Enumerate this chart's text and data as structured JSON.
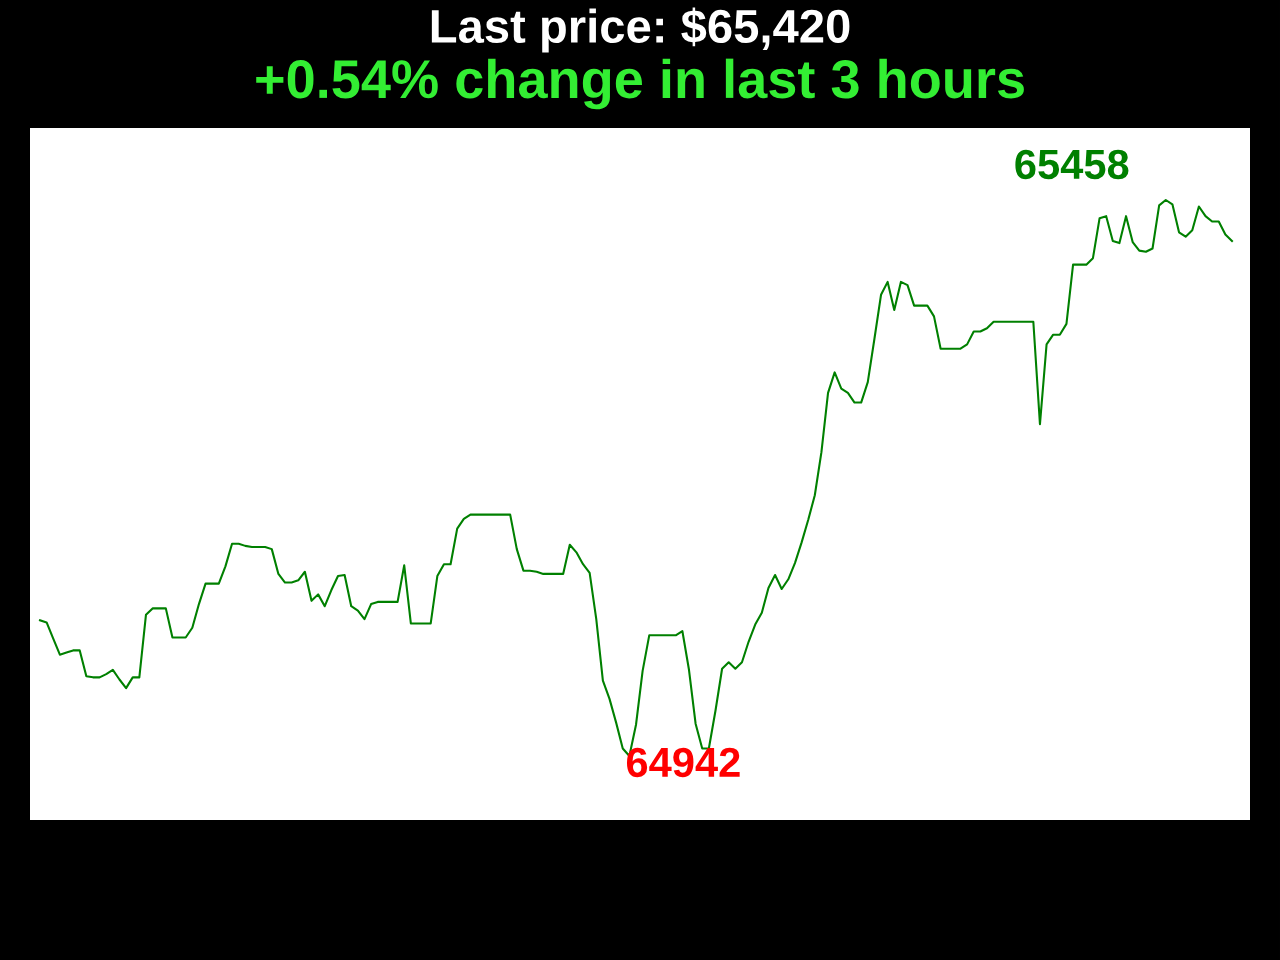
{
  "chart_data": {
    "type": "line",
    "title": "Last price: $65,420",
    "subtitle": "+0.54% change in last 3 hours",
    "categories": [
      null,
      null,
      null,
      null,
      null,
      null,
      null,
      null,
      null,
      null,
      null,
      null,
      null,
      null,
      null,
      null,
      null,
      null,
      null,
      null,
      null,
      null,
      null,
      null,
      null,
      null,
      null,
      null,
      null,
      null,
      null,
      null,
      null,
      null,
      null,
      null,
      null,
      null,
      null,
      null,
      null,
      null,
      null,
      null,
      null,
      null,
      null,
      null,
      null,
      null,
      null,
      null,
      null,
      null,
      null,
      null,
      null,
      null,
      null,
      null,
      null,
      null,
      null,
      null,
      null,
      null,
      null,
      null,
      null,
      null,
      null,
      null,
      null,
      null,
      null,
      null,
      null,
      null,
      null,
      null,
      null,
      null,
      null,
      null,
      null,
      null,
      null,
      null,
      null,
      null,
      null,
      null,
      null,
      null,
      null,
      null,
      null,
      null,
      null,
      null,
      null,
      null,
      null,
      null,
      null,
      null,
      null,
      null,
      null,
      null,
      null,
      null,
      null,
      null,
      null,
      null,
      null,
      null,
      null,
      null,
      null,
      null,
      null,
      null,
      null,
      null,
      null,
      null,
      null,
      null,
      null,
      null,
      null,
      null,
      null,
      null,
      null,
      null,
      null,
      null,
      null,
      null,
      null,
      null,
      null,
      null,
      null,
      null,
      null,
      null,
      null,
      null,
      null,
      null,
      null,
      null,
      null,
      null,
      null,
      null,
      null,
      null,
      null,
      null,
      null,
      null,
      null,
      null,
      null,
      null,
      null,
      null,
      null,
      null,
      null,
      null,
      null,
      null,
      null,
      null,
      null
    ],
    "series": [
      {
        "color": "#008000",
        "values": [
          65068,
          65066,
          65051,
          65036,
          65038,
          65040,
          65040,
          65016,
          65015,
          65015,
          65018,
          65022,
          65013,
          65005,
          65015,
          65015,
          65073,
          65079,
          65079,
          65079,
          65052,
          65052,
          65052,
          65061,
          65083,
          65102,
          65102,
          65102,
          65118,
          65139,
          65139,
          65137,
          65136,
          65136,
          65136,
          65134,
          65111,
          65103,
          65103,
          65105,
          65113,
          65086,
          65092,
          65081,
          65096,
          65109,
          65110,
          65081,
          65077,
          65069,
          65083,
          65085,
          65085,
          65085,
          65085,
          65119,
          65065,
          65065,
          65065,
          65065,
          65109,
          65120,
          65120,
          65153,
          65162,
          65166,
          65166,
          65166,
          65166,
          65166,
          65166,
          65166,
          65134,
          65114,
          65114,
          65113,
          65111,
          65111,
          65111,
          65111,
          65138,
          65131,
          65120,
          65112,
          65069,
          65012,
          64995,
          64973,
          64949,
          64942,
          64971,
          65021,
          65054,
          65054,
          65054,
          65054,
          65054,
          65058,
          65022,
          64972,
          64949,
          64949,
          64984,
          65023,
          65029,
          65023,
          65029,
          65048,
          65064,
          65075,
          65098,
          65110,
          65097,
          65106,
          65121,
          65140,
          65161,
          65184,
          65224,
          65279,
          65298,
          65283,
          65279,
          65270,
          65270,
          65289,
          65329,
          65370,
          65382,
          65356,
          65382,
          65379,
          65360,
          65360,
          65360,
          65350,
          65320,
          65320,
          65320,
          65320,
          65324,
          65336,
          65336,
          65339,
          65345,
          65345,
          65345,
          65345,
          65345,
          65345,
          65345,
          65250,
          65324,
          65333,
          65333,
          65343,
          65398,
          65398,
          65398,
          65404,
          65441,
          65443,
          65420,
          65418,
          65443,
          65419,
          65411,
          65410,
          65413,
          65453,
          65458,
          65454,
          65428,
          65424,
          65430,
          65452,
          65443,
          65438,
          65438,
          65426,
          65420
        ],
        "value_labels": [
          null,
          null,
          null,
          null,
          null,
          null,
          null,
          null,
          null,
          null,
          null,
          null,
          null,
          null,
          null,
          null,
          null,
          null,
          null,
          null,
          null,
          null,
          null,
          null,
          null,
          null,
          null,
          null,
          null,
          null,
          null,
          null,
          null,
          null,
          null,
          null,
          null,
          null,
          null,
          null,
          null,
          null,
          null,
          null,
          null,
          null,
          null,
          null,
          null,
          null,
          null,
          null,
          null,
          null,
          null,
          null,
          null,
          null,
          null,
          null,
          null,
          null,
          null,
          null,
          null,
          null,
          null,
          null,
          null,
          null,
          null,
          null,
          null,
          null,
          null,
          null,
          null,
          null,
          null,
          null,
          null,
          null,
          null,
          null,
          null,
          null,
          null,
          null,
          null,
          "64942",
          null,
          null,
          null,
          null,
          null,
          null,
          null,
          null,
          null,
          null,
          null,
          null,
          null,
          null,
          null,
          null,
          null,
          null,
          null,
          null,
          null,
          null,
          null,
          null,
          null,
          null,
          null,
          null,
          null,
          null,
          null,
          null,
          null,
          null,
          null,
          null,
          null,
          null,
          null,
          null,
          null,
          null,
          null,
          null,
          null,
          null,
          null,
          null,
          null,
          null,
          null,
          null,
          null,
          null,
          null,
          null,
          null,
          null,
          null,
          null,
          null,
          null,
          null,
          null,
          null,
          null,
          null,
          null,
          null,
          null,
          null,
          null,
          null,
          null,
          null,
          null,
          null,
          null,
          null,
          null,
          "65458",
          null,
          null,
          null,
          null,
          null,
          null,
          null,
          null,
          null,
          null
        ]
      }
    ],
    "tick_labels": false
  }
}
